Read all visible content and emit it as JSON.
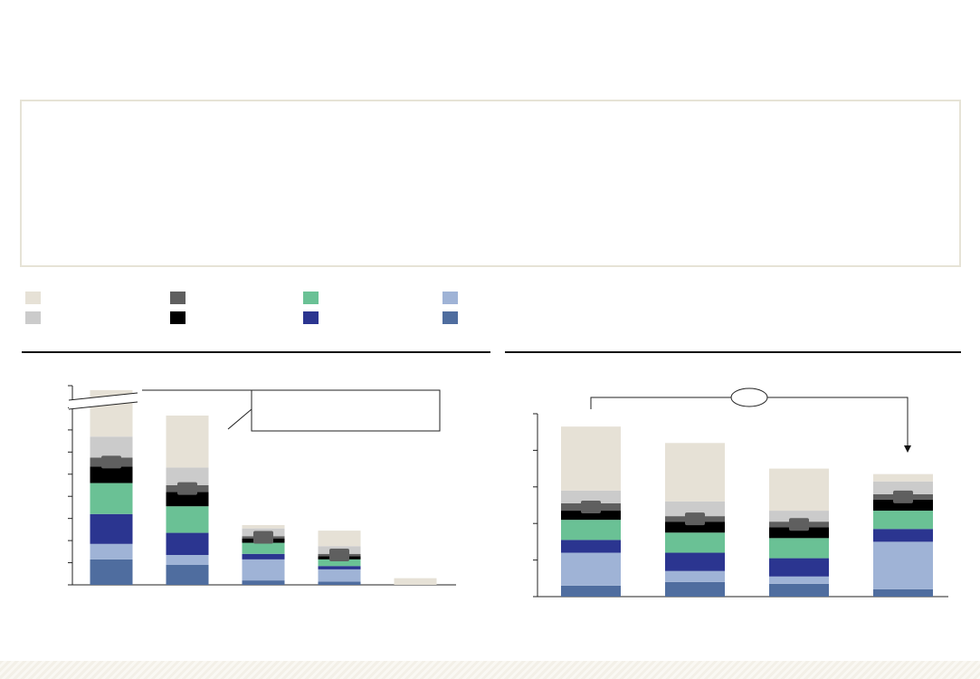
{
  "page": {
    "title": "",
    "commentary": ""
  },
  "legend": [
    {
      "label": "",
      "color": "#e6e1d6"
    },
    {
      "label": "",
      "color": "#cbcbcb"
    },
    {
      "label": "",
      "color": "#5f5f5f"
    },
    {
      "label": "",
      "color": "#000000"
    },
    {
      "label": "",
      "color": "#6ac195"
    },
    {
      "label": "",
      "color": "#2b3590"
    },
    {
      "label": "",
      "color": "#9fb3d6"
    },
    {
      "label": "",
      "color": "#4f6d9f"
    }
  ],
  "left_chart": {
    "title": "",
    "callout_text": "",
    "axis_break": true
  },
  "right_chart": {
    "title": "",
    "bracket_label": ""
  },
  "chart_data": [
    {
      "type": "bar",
      "stacked": true,
      "axis_break_on_first_bar": true,
      "categories": [
        "",
        "",
        "",
        "",
        ""
      ],
      "ylim": [
        0,
        9
      ],
      "yticks": [
        0,
        1,
        2,
        3,
        4,
        5,
        6,
        7,
        8,
        9
      ],
      "grid": false,
      "legend": "top-left",
      "series": [
        {
          "color": "#4f6d9f",
          "values": [
            1.15,
            0.9,
            0.2,
            0.15,
            0
          ]
        },
        {
          "color": "#9fb3d6",
          "values": [
            0.7,
            0.45,
            0.95,
            0.55,
            0
          ]
        },
        {
          "color": "#2b3590",
          "values": [
            1.35,
            1.0,
            0.25,
            0.15,
            0
          ]
        },
        {
          "color": "#6ac195",
          "values": [
            1.4,
            1.2,
            0.5,
            0.3,
            0
          ]
        },
        {
          "color": "#000000",
          "values": [
            0.75,
            0.65,
            0.2,
            0.15,
            0
          ]
        },
        {
          "color": "#5f5f5f",
          "values": [
            0.4,
            0.3,
            0.1,
            0.1,
            0
          ]
        },
        {
          "color": "#cbcbcb",
          "values": [
            0.95,
            0.8,
            0.35,
            0.35,
            0
          ]
        },
        {
          "color": "#e6e1d6",
          "values": [
            2.1,
            2.35,
            0.15,
            0.7,
            0.3
          ]
        }
      ]
    },
    {
      "type": "bar",
      "stacked": true,
      "categories": [
        "",
        "",
        "",
        ""
      ],
      "ylim": [
        0,
        100
      ],
      "yticks": [
        0,
        20,
        40,
        60,
        80,
        100
      ],
      "grid": false,
      "series": [
        {
          "color": "#4f6d9f",
          "values": [
            6,
            8,
            7,
            4
          ]
        },
        {
          "color": "#9fb3d6",
          "values": [
            18,
            6,
            4,
            26
          ]
        },
        {
          "color": "#2b3590",
          "values": [
            7,
            10,
            10,
            7
          ]
        },
        {
          "color": "#6ac195",
          "values": [
            11,
            11,
            11,
            10
          ]
        },
        {
          "color": "#000000",
          "values": [
            5,
            6,
            6,
            6
          ]
        },
        {
          "color": "#5f5f5f",
          "values": [
            4,
            3,
            3,
            3
          ]
        },
        {
          "color": "#cbcbcb",
          "values": [
            7,
            8,
            6,
            7
          ]
        },
        {
          "color": "#e6e1d6",
          "values": [
            35,
            32,
            23,
            4
          ]
        }
      ]
    }
  ]
}
